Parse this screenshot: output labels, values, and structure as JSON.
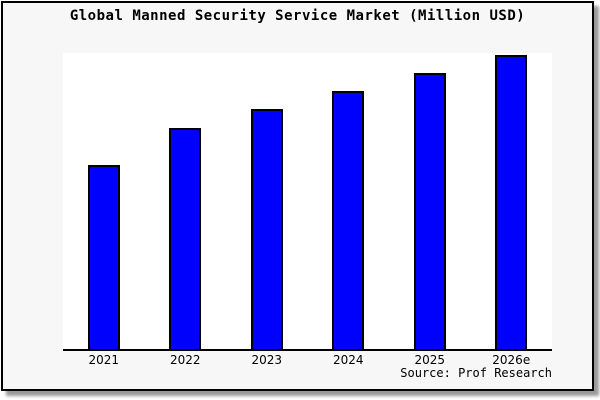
{
  "title": "Global Manned Security Service Market (Million USD)",
  "source": "Source: Prof Research",
  "colors": {
    "bar_fill": "#0000fd",
    "bar_border": "#000000",
    "frame_background": "#f7f7f7",
    "plot_background": "#ffffff",
    "axis": "#000000"
  },
  "chart_data": {
    "type": "bar",
    "title": "Global Manned Security Service Market (Million USD)",
    "categories": [
      "2021",
      "2022",
      "2023",
      "2024",
      "2025",
      "2026e"
    ],
    "values": [
      62.6,
      75.1,
      81.5,
      87.9,
      94.0,
      100.0
    ],
    "values_unit": "percent of tallest bar (no y-axis scale shown in chart)",
    "xlabel": "",
    "ylabel": "",
    "ylim": [
      0,
      100
    ],
    "grid": false,
    "legend": false,
    "annotations": [
      "Source: Prof Research"
    ]
  }
}
